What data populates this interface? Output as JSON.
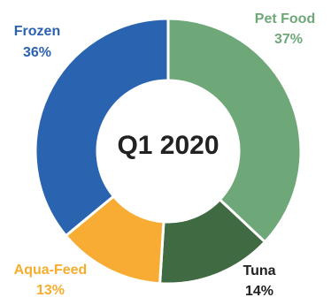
{
  "chart_data": {
    "type": "pie",
    "center_label": "Q1 2020",
    "slices": [
      {
        "label": "Pet Food",
        "value_label": "37%",
        "value": 37,
        "color": "#6fa878",
        "text_color": "#6fa878"
      },
      {
        "label": "Tuna",
        "value_label": "14%",
        "value": 14,
        "color": "#3f6a42",
        "text_color": "#1f1f1f"
      },
      {
        "label": "Aqua-Feed",
        "value_label": "13%",
        "value": 13,
        "color": "#f8ac33",
        "text_color": "#f6ad2d"
      },
      {
        "label": "Frozen",
        "value_label": "36%",
        "value": 36,
        "color": "#2a64b0",
        "text_color": "#2b62b0"
      }
    ]
  }
}
